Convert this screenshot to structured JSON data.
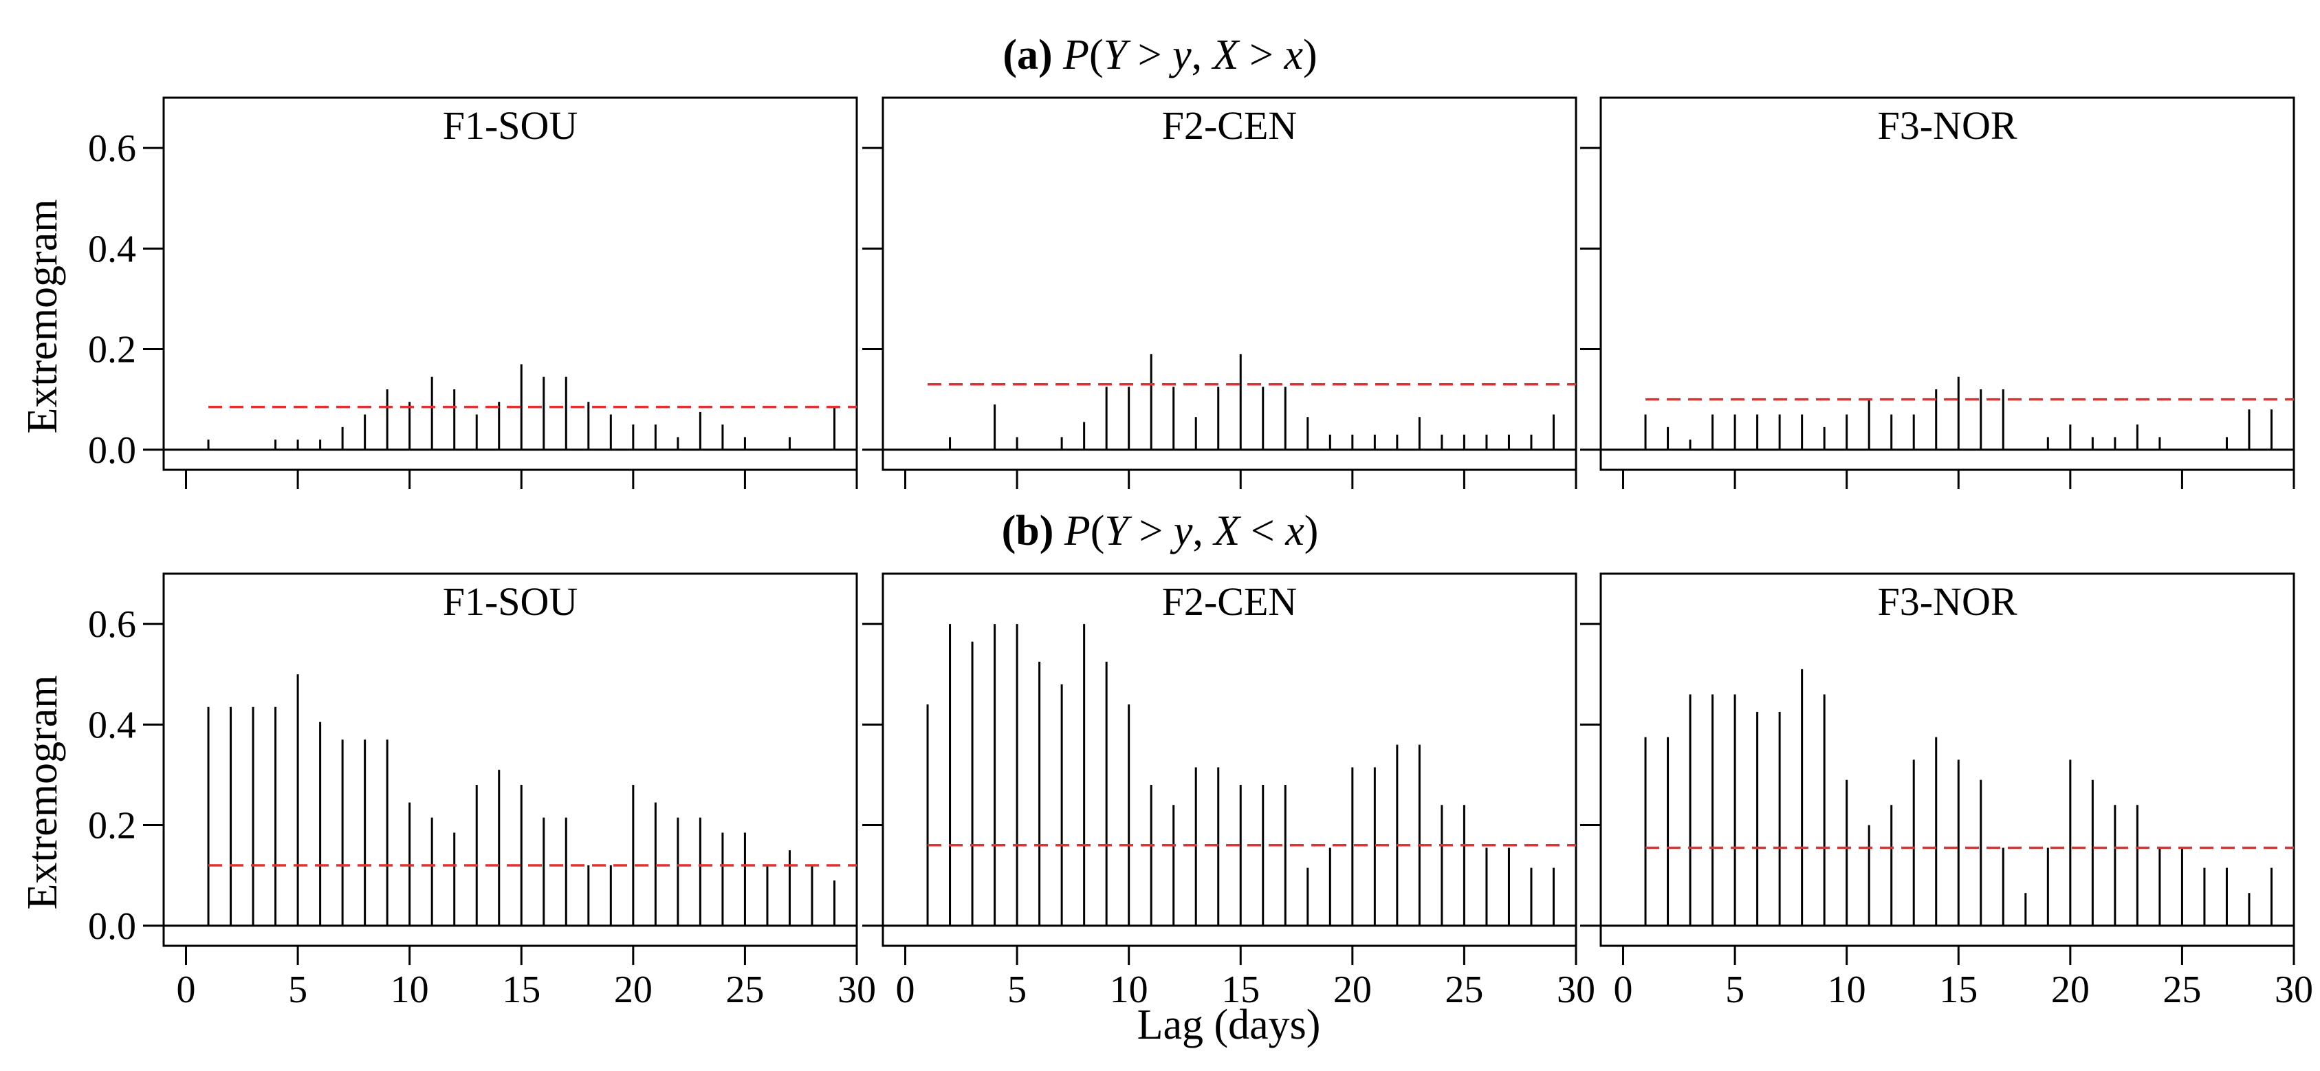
{
  "chart_data": {
    "type": "bar",
    "x": [
      1,
      2,
      3,
      4,
      5,
      6,
      7,
      8,
      9,
      10,
      11,
      12,
      13,
      14,
      15,
      16,
      17,
      18,
      19,
      20,
      21,
      22,
      23,
      24,
      25,
      26,
      27,
      28,
      29,
      30
    ],
    "xlabel": "Lag (days)",
    "ylabel": "Extremogram",
    "xlim": [
      -1,
      30
    ],
    "ylim": [
      -0.04,
      0.7
    ],
    "xticks": [
      0,
      5,
      10,
      15,
      20,
      25,
      30
    ],
    "yticks": [
      "0.0",
      "0.2",
      "0.4",
      "0.6"
    ],
    "ytick_values": [
      0.0,
      0.2,
      0.4,
      0.6
    ],
    "threshold_style": "red dashed line",
    "rows": [
      {
        "label": "(a)",
        "title": "P(Y > y, X > x)",
        "title_parts": [
          "P",
          "(",
          "Y",
          " > ",
          "y",
          ", ",
          "X",
          " > ",
          "x",
          ")"
        ],
        "panels": [
          {
            "title": "F1-SOU",
            "threshold": 0.085,
            "values": [
              0.02,
              0.0,
              0.0,
              0.02,
              0.02,
              0.02,
              0.045,
              0.07,
              0.12,
              0.095,
              0.145,
              0.12,
              0.07,
              0.095,
              0.17,
              0.145,
              0.145,
              0.095,
              0.07,
              0.05,
              0.05,
              0.025,
              0.075,
              0.05,
              0.025,
              0.0,
              0.025,
              0.0,
              0.085,
              0.085
            ]
          },
          {
            "title": "F2-CEN",
            "threshold": 0.13,
            "values": [
              0.0,
              0.025,
              0.0,
              0.09,
              0.025,
              0.0,
              0.025,
              0.055,
              0.125,
              0.125,
              0.19,
              0.125,
              0.065,
              0.125,
              0.19,
              0.125,
              0.125,
              0.065,
              0.03,
              0.03,
              0.03,
              0.03,
              0.065,
              0.03,
              0.03,
              0.03,
              0.03,
              0.03,
              0.07,
              0.07
            ]
          },
          {
            "title": "F3-NOR",
            "threshold": 0.1,
            "values": [
              0.07,
              0.045,
              0.02,
              0.07,
              0.07,
              0.07,
              0.07,
              0.07,
              0.045,
              0.07,
              0.1,
              0.07,
              0.07,
              0.12,
              0.145,
              0.12,
              0.12,
              0.0,
              0.025,
              0.05,
              0.025,
              0.025,
              0.05,
              0.025,
              0.0,
              0.0,
              0.025,
              0.08,
              0.08,
              0.08
            ]
          }
        ]
      },
      {
        "label": "(b)",
        "title": "P(Y > y, X < x)",
        "title_parts": [
          "P",
          "(",
          "Y",
          " > ",
          "y",
          ", ",
          "X",
          " < ",
          "x",
          ")"
        ],
        "panels": [
          {
            "title": "F1-SOU",
            "threshold": 0.12,
            "values": [
              0.435,
              0.435,
              0.435,
              0.435,
              0.5,
              0.405,
              0.37,
              0.37,
              0.37,
              0.245,
              0.215,
              0.185,
              0.28,
              0.31,
              0.28,
              0.215,
              0.215,
              0.12,
              0.12,
              0.28,
              0.245,
              0.215,
              0.215,
              0.185,
              0.185,
              0.12,
              0.15,
              0.12,
              0.09,
              0.09
            ]
          },
          {
            "title": "F2-CEN",
            "threshold": 0.16,
            "values": [
              0.44,
              0.6,
              0.565,
              0.6,
              0.6,
              0.525,
              0.48,
              0.6,
              0.525,
              0.44,
              0.28,
              0.24,
              0.315,
              0.315,
              0.28,
              0.28,
              0.28,
              0.115,
              0.155,
              0.315,
              0.315,
              0.36,
              0.36,
              0.24,
              0.24,
              0.155,
              0.155,
              0.115,
              0.115,
              0.115
            ]
          },
          {
            "title": "F3-NOR",
            "threshold": 0.155,
            "values": [
              0.375,
              0.375,
              0.46,
              0.46,
              0.46,
              0.425,
              0.425,
              0.51,
              0.46,
              0.29,
              0.2,
              0.24,
              0.33,
              0.375,
              0.33,
              0.29,
              0.155,
              0.065,
              0.155,
              0.33,
              0.29,
              0.24,
              0.24,
              0.155,
              0.155,
              0.115,
              0.115,
              0.065,
              0.115,
              0.155
            ]
          }
        ]
      }
    ]
  }
}
